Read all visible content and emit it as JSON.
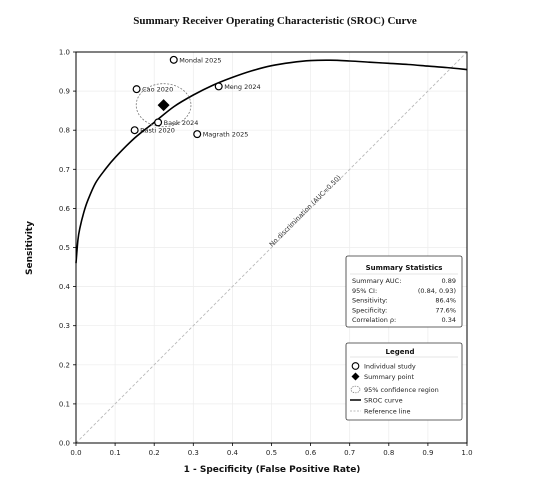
{
  "chart_data": {
    "type": "scatter",
    "title": "Summary Receiver Operating Characteristic (SROC) Curve",
    "xlabel": "1 - Specificity (False Positive Rate)",
    "ylabel": "Sensitivity",
    "xlim": [
      0,
      1
    ],
    "ylim": [
      0,
      1
    ],
    "xticks": [
      "0.0",
      "0.1",
      "0.2",
      "0.3",
      "0.4",
      "0.5",
      "0.6",
      "0.7",
      "0.8",
      "0.9",
      "1.0"
    ],
    "yticks": [
      "0.0",
      "0.1",
      "0.2",
      "0.3",
      "0.4",
      "0.5",
      "0.6",
      "0.7",
      "0.8",
      "0.9",
      "1.0"
    ],
    "grid": true,
    "studies": [
      {
        "name": "Mondal 2025",
        "x": 0.25,
        "y": 0.98
      },
      {
        "name": "Cao 2020",
        "x": 0.155,
        "y": 0.905
      },
      {
        "name": "Meng 2024",
        "x": 0.365,
        "y": 0.912
      },
      {
        "name": "Baek 2024",
        "x": 0.21,
        "y": 0.82
      },
      {
        "name": "Rasti 2020",
        "x": 0.15,
        "y": 0.8
      },
      {
        "name": "Magrath 2025",
        "x": 0.31,
        "y": 0.79
      }
    ],
    "summary_point": {
      "x": 0.224,
      "y": 0.864
    },
    "confidence_region": {
      "cx": 0.224,
      "cy": 0.864,
      "rx": 0.07,
      "ry": 0.055
    },
    "sroc_curve": [
      [
        0,
        0.46
      ],
      [
        0.005,
        0.52
      ],
      [
        0.01,
        0.55
      ],
      [
        0.02,
        0.59
      ],
      [
        0.03,
        0.62
      ],
      [
        0.05,
        0.665
      ],
      [
        0.075,
        0.7
      ],
      [
        0.1,
        0.73
      ],
      [
        0.15,
        0.78
      ],
      [
        0.2,
        0.82
      ],
      [
        0.25,
        0.86
      ],
      [
        0.3,
        0.89
      ],
      [
        0.35,
        0.915
      ],
      [
        0.4,
        0.935
      ],
      [
        0.45,
        0.952
      ],
      [
        0.5,
        0.965
      ],
      [
        0.55,
        0.973
      ],
      [
        0.6,
        0.978
      ],
      [
        0.65,
        0.979
      ],
      [
        0.7,
        0.977
      ],
      [
        0.75,
        0.974
      ],
      [
        0.8,
        0.971
      ],
      [
        0.85,
        0.968
      ],
      [
        0.9,
        0.964
      ],
      [
        0.95,
        0.96
      ],
      [
        1.0,
        0.955
      ]
    ],
    "reference_line": {
      "from": [
        0,
        0
      ],
      "to": [
        1,
        1
      ],
      "label": "No discrimination (AUC=0.50)"
    },
    "summary_statistics": {
      "title": "Summary Statistics",
      "rows": [
        {
          "label": "Summary AUC:",
          "value": "0.89"
        },
        {
          "label": "95% CI:",
          "value": "(0.84, 0.93)"
        },
        {
          "label": "Sensitivity:",
          "value": "86.4%"
        },
        {
          "label": "Specificity:",
          "value": "77.6%"
        },
        {
          "label": "Correlation ρ:",
          "value": "0.34"
        }
      ]
    },
    "legend": {
      "title": "Legend",
      "placement": "lower-right",
      "entries": [
        "Individual study",
        "Summary point",
        "95% confidence region",
        "SROC curve",
        "Reference line"
      ]
    }
  }
}
